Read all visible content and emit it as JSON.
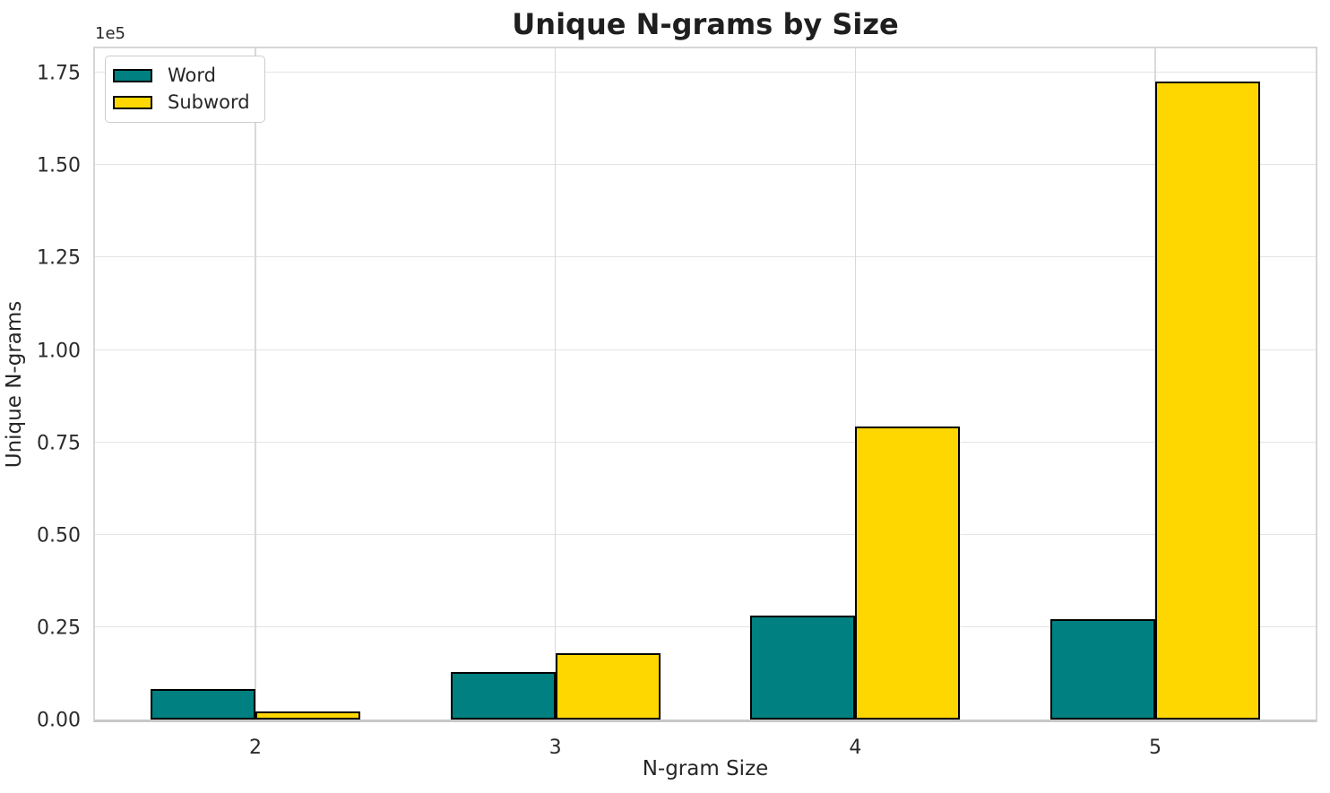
{
  "figure": {
    "title": "Unique N-grams by Size",
    "offset_label": "1e5",
    "x_axis_label": "N-gram Size",
    "y_axis_label": "Unique N-grams",
    "y_tick_labels": [
      "0.00",
      "0.25",
      "0.50",
      "0.75",
      "1.00",
      "1.25",
      "1.50",
      "1.75"
    ],
    "x_tick_labels": [
      "2",
      "3",
      "4",
      "5"
    ],
    "legend": {
      "items": [
        {
          "label": "Word",
          "color": "#008080"
        },
        {
          "label": "Subword",
          "color": "#FFD700"
        }
      ]
    }
  },
  "colors": {
    "word_bar": "#008080",
    "subword_bar": "#FFD700",
    "bar_edge": "#000000",
    "grid": "#e4e4e4",
    "spine": "#d6d6d6",
    "text": "#262626"
  },
  "chart_data": {
    "type": "bar",
    "title": "Unique N-grams by Size",
    "xlabel": "N-gram Size",
    "ylabel": "Unique N-grams",
    "categories": [
      "2",
      "3",
      "4",
      "5"
    ],
    "series": [
      {
        "name": "Word",
        "color": "#008080",
        "values": [
          8200,
          12800,
          28200,
          27200
        ]
      },
      {
        "name": "Subword",
        "color": "#FFD700",
        "values": [
          2200,
          17900,
          79300,
          172700
        ]
      }
    ],
    "ylim": [
      0,
      181600
    ],
    "y_tick_step": 25000,
    "y_scale_note": "y tick labels are value / 1e5",
    "xlim": [
      -0.535,
      3.535
    ],
    "bar_width": 0.35,
    "grid": true,
    "legend_position": "upper left",
    "bar_edge_color": "#000000"
  }
}
